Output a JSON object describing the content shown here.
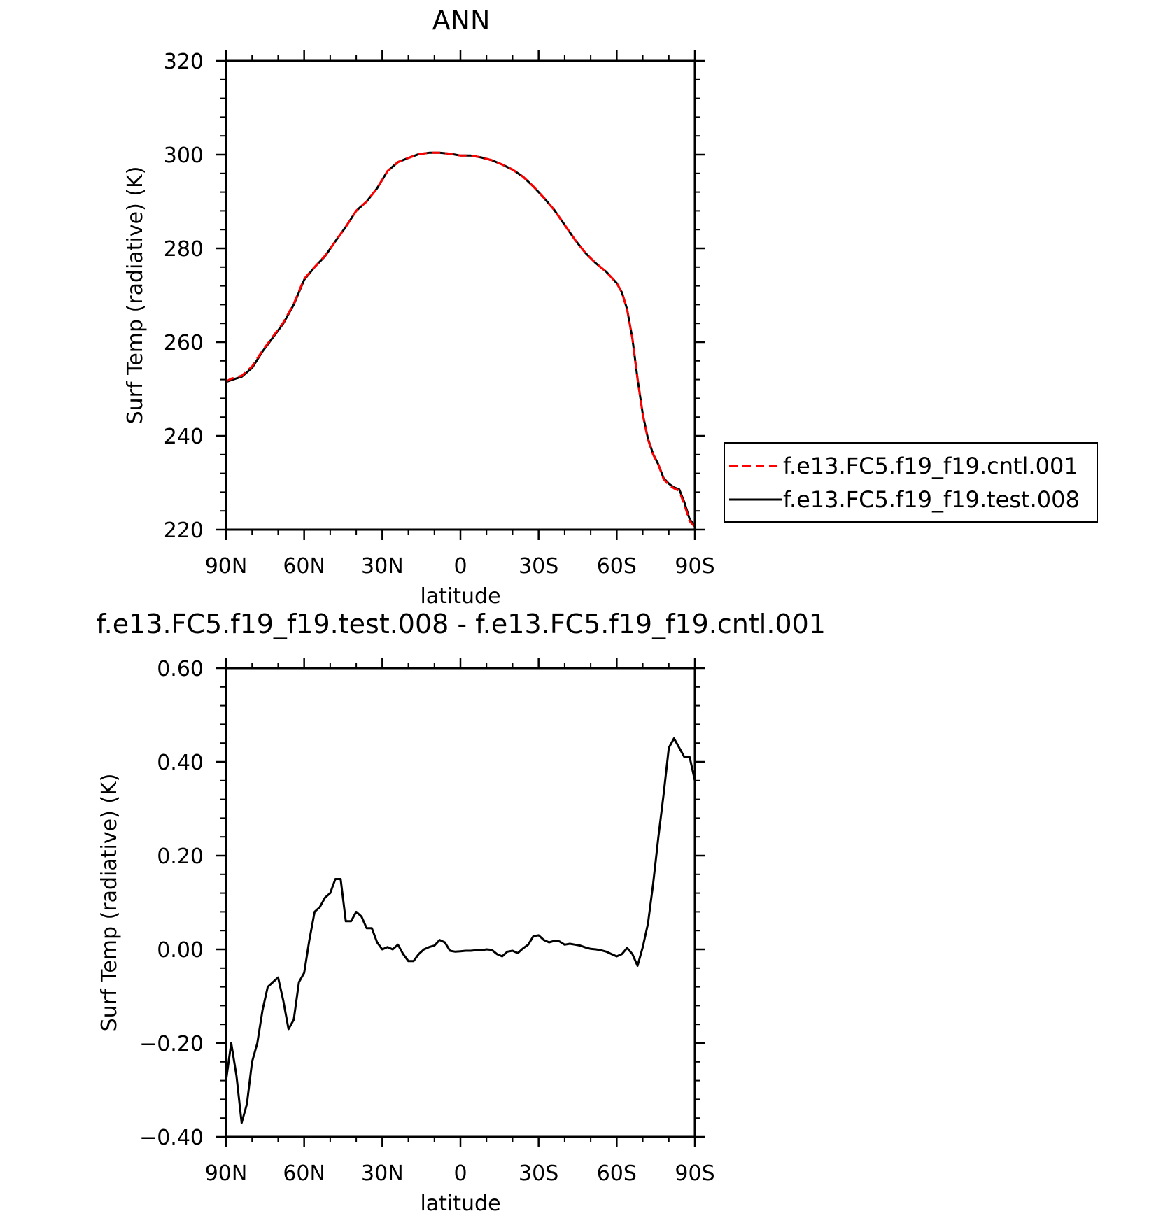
{
  "chart_data": [
    {
      "type": "line",
      "title": "ANN",
      "xlabel": "latitude",
      "ylabel": "Surf Temp (radiative) (K)",
      "xlim": [
        90,
        -90
      ],
      "ylim": [
        220,
        320
      ],
      "xticks": [
        90,
        60,
        30,
        0,
        -30,
        -60,
        -90
      ],
      "xticklabels": [
        "90N",
        "60N",
        "30N",
        "0",
        "30S",
        "60S",
        "90S"
      ],
      "yticks": [
        220,
        240,
        260,
        280,
        300,
        320
      ],
      "yticklabels": [
        "220",
        "240",
        "260",
        "280",
        "300",
        "320"
      ],
      "grid": false,
      "legend_position": "right",
      "series": [
        {
          "name": "f.e13.FC5.f19_f19.cntl.001",
          "color": "#ff0000",
          "dash": "dashed",
          "x": [
            90,
            88,
            84,
            80,
            76,
            72,
            68,
            64,
            60,
            56,
            52,
            48,
            44,
            40,
            36,
            32,
            28,
            24,
            20,
            16,
            12,
            8,
            4,
            2,
            0,
            -4,
            -8,
            -12,
            -16,
            -20,
            -24,
            -28,
            -32,
            -36,
            -40,
            -44,
            -48,
            -52,
            -56,
            -60,
            -62,
            -64,
            -66,
            -68,
            -70,
            -72,
            -74,
            -76,
            -78,
            -80,
            -82,
            -84,
            -86,
            -88,
            -90
          ],
          "y": [
            251.6,
            252.2,
            252.8,
            254.8,
            258.2,
            261.2,
            264.2,
            268.2,
            273.5,
            276.0,
            278.4,
            281.5,
            284.6,
            288.0,
            290.0,
            292.8,
            296.5,
            298.4,
            299.3,
            300.1,
            300.4,
            300.4,
            300.2,
            300.0,
            299.8,
            299.8,
            299.4,
            298.8,
            297.9,
            296.8,
            295.3,
            293.2,
            290.8,
            288.2,
            285.0,
            281.8,
            279.0,
            276.8,
            275.0,
            272.6,
            270.6,
            267.0,
            260.8,
            252.2,
            244.5,
            239.2,
            236.0,
            233.8,
            230.8,
            229.5,
            228.8,
            228.3,
            225.3,
            221.8,
            220.6
          ]
        },
        {
          "name": "f.e13.FC5.f19_f19.test.008",
          "color": "#000000",
          "dash": "solid",
          "x": [
            90,
            88,
            84,
            80,
            76,
            72,
            68,
            64,
            60,
            56,
            52,
            48,
            44,
            40,
            36,
            32,
            28,
            24,
            20,
            16,
            12,
            8,
            4,
            2,
            0,
            -4,
            -8,
            -12,
            -16,
            -20,
            -24,
            -28,
            -32,
            -36,
            -40,
            -44,
            -48,
            -52,
            -56,
            -60,
            -62,
            -64,
            -66,
            -68,
            -70,
            -72,
            -74,
            -76,
            -78,
            -80,
            -82,
            -84,
            -86,
            -88,
            -90
          ],
          "y": [
            251.5,
            251.9,
            252.6,
            254.5,
            258.0,
            261.0,
            264.0,
            268.0,
            273.3,
            276.0,
            278.3,
            281.5,
            284.6,
            288.0,
            290.0,
            292.8,
            296.5,
            298.4,
            299.3,
            300.1,
            300.4,
            300.4,
            300.2,
            300.0,
            299.8,
            299.8,
            299.4,
            298.8,
            297.9,
            296.8,
            295.3,
            293.2,
            290.8,
            288.2,
            285.0,
            281.8,
            279.0,
            276.8,
            275.0,
            272.6,
            270.6,
            267.0,
            260.8,
            252.2,
            244.6,
            239.4,
            236.1,
            233.9,
            231.0,
            229.8,
            229.0,
            228.6,
            225.8,
            222.2,
            220.9
          ]
        }
      ]
    },
    {
      "type": "line",
      "title": "f.e13.FC5.f19_f19.test.008 - f.e13.FC5.f19_f19.cntl.001",
      "xlabel": "latitude",
      "ylabel": "Surf Temp (radiative) (K)",
      "xlim": [
        90,
        -90
      ],
      "ylim": [
        -0.4,
        0.6
      ],
      "xticks": [
        90,
        60,
        30,
        0,
        -30,
        -60,
        -90
      ],
      "xticklabels": [
        "90N",
        "60N",
        "30N",
        "0",
        "30S",
        "60S",
        "90S"
      ],
      "yticks": [
        -0.4,
        -0.2,
        0.0,
        0.2,
        0.4,
        0.6
      ],
      "yticklabels": [
        "−0.40",
        "−0.20",
        "0.00",
        "0.20",
        "0.40",
        "0.60"
      ],
      "grid": false,
      "series": [
        {
          "color": "#000000",
          "dash": "solid",
          "x": [
            90,
            88,
            86,
            84,
            82,
            80,
            78,
            76,
            74,
            72,
            70,
            68,
            66,
            64,
            62,
            60,
            58,
            56,
            54,
            52,
            50,
            48,
            46,
            44,
            42,
            40,
            38,
            36,
            34,
            32,
            30,
            28,
            26,
            24,
            22,
            20,
            18,
            16,
            14,
            12,
            10,
            8,
            6,
            4,
            2,
            0,
            -2,
            -4,
            -6,
            -8,
            -10,
            -12,
            -14,
            -16,
            -18,
            -20,
            -22,
            -24,
            -26,
            -28,
            -30,
            -32,
            -34,
            -36,
            -38,
            -40,
            -42,
            -44,
            -46,
            -48,
            -50,
            -52,
            -54,
            -56,
            -58,
            -60,
            -62,
            -64,
            -66,
            -68,
            -70,
            -72,
            -74,
            -76,
            -78,
            -80,
            -82,
            -84,
            -86,
            -88,
            -90
          ],
          "y": [
            -0.28,
            -0.2,
            -0.27,
            -0.37,
            -0.33,
            -0.24,
            -0.2,
            -0.13,
            -0.08,
            -0.07,
            -0.06,
            -0.11,
            -0.17,
            -0.15,
            -0.07,
            -0.05,
            0.02,
            0.08,
            0.09,
            0.11,
            0.12,
            0.15,
            0.15,
            0.06,
            0.06,
            0.08,
            0.07,
            0.045,
            0.045,
            0.015,
            0.0,
            0.005,
            0.0,
            0.01,
            -0.01,
            -0.025,
            -0.025,
            -0.01,
            0.0,
            0.005,
            0.008,
            0.02,
            0.015,
            -0.003,
            -0.005,
            -0.004,
            -0.003,
            -0.003,
            -0.002,
            -0.002,
            0.0,
            -0.001,
            -0.01,
            -0.015,
            -0.005,
            -0.003,
            -0.008,
            0.002,
            0.01,
            0.028,
            0.03,
            0.02,
            0.015,
            0.018,
            0.017,
            0.01,
            0.012,
            0.01,
            0.008,
            0.004,
            0.001,
            0.0,
            -0.002,
            -0.005,
            -0.01,
            -0.015,
            -0.01,
            0.003,
            -0.01,
            -0.035,
            0.005,
            0.055,
            0.14,
            0.24,
            0.33,
            0.43,
            0.45,
            0.43,
            0.41,
            0.41,
            0.36
          ]
        }
      ]
    }
  ]
}
